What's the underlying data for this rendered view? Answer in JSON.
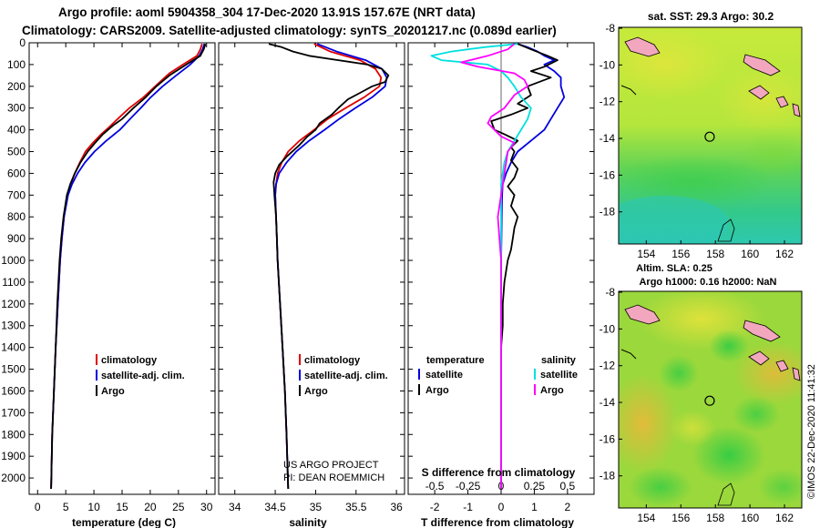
{
  "titles": {
    "line1": "Argo profile: aoml 5904358_304 17-Dec-2020 13.91S 157.67E (NRT data)",
    "line2": "Climatology: CARS2009. Satellite-adjusted climatology: synTS_20201217.nc (0.089d earlier)"
  },
  "colors": {
    "climatology": "#e00000",
    "satellite": "#0000e0",
    "argo": "#000000",
    "salinity_diff": "#00e0e0",
    "argo_salinity_diff": "#ff00ff"
  },
  "depth_axis": {
    "ticks": [
      0,
      100,
      200,
      300,
      400,
      500,
      600,
      700,
      800,
      900,
      1000,
      1100,
      1200,
      1300,
      1400,
      1500,
      1600,
      1700,
      1800,
      1900,
      2000
    ],
    "range": [
      0,
      2075
    ]
  },
  "chart_data": [
    {
      "type": "line",
      "name": "temperature-profile",
      "xlabel": "temperature (deg C)",
      "ylabel": "depth",
      "xlim": [
        -1.5,
        31.5
      ],
      "xticks": [
        0,
        5,
        10,
        15,
        20,
        25,
        30
      ],
      "legend": {
        "placement": "bottom-center",
        "entries": [
          "climatology",
          "satellite-adj. clim.",
          "Argo"
        ]
      },
      "series": [
        {
          "name": "climatology",
          "color": "#e00000",
          "depth": [
            5,
            30,
            60,
            100,
            140,
            190,
            250,
            300,
            350,
            390,
            420,
            460,
            500,
            550,
            600,
            650,
            700,
            800,
            900,
            1000,
            1200,
            1400,
            1600,
            1800,
            2050
          ],
          "values": [
            29.2,
            28.9,
            28.3,
            25.8,
            23.4,
            21.3,
            18.8,
            16.3,
            14.2,
            12.6,
            11.3,
            9.8,
            8.5,
            7.5,
            6.6,
            5.9,
            5.3,
            4.7,
            4.3,
            4.0,
            3.6,
            3.2,
            2.9,
            2.6,
            2.4
          ]
        },
        {
          "name": "satellite-adj. clim.",
          "color": "#0000e0",
          "depth": [
            5,
            30,
            60,
            100,
            150,
            200,
            250,
            300,
            350,
            400,
            450,
            500,
            550,
            600,
            650,
            700,
            800,
            900,
            1000,
            1200,
            1400,
            1600,
            1800,
            2050
          ],
          "values": [
            29.6,
            29.3,
            28.7,
            27.1,
            24.6,
            22.2,
            20.1,
            18.3,
            16.4,
            14.6,
            12.2,
            10.1,
            8.4,
            7.1,
            6.1,
            5.4,
            4.7,
            4.3,
            4.0,
            3.6,
            3.2,
            2.9,
            2.6,
            2.4
          ]
        },
        {
          "name": "Argo",
          "color": "#000000",
          "depth": [
            5,
            30,
            60,
            100,
            150,
            200,
            250,
            300,
            350,
            380,
            420,
            460,
            500,
            550,
            600,
            650,
            700,
            800,
            900,
            1000,
            1200,
            1400,
            1600,
            1800,
            2050
          ],
          "values": [
            29.8,
            29.5,
            28.9,
            26.4,
            23.4,
            21.1,
            19.2,
            17.0,
            15.0,
            13.4,
            11.6,
            10.2,
            8.9,
            7.6,
            6.6,
            5.8,
            5.2,
            4.6,
            4.2,
            3.9,
            3.5,
            3.2,
            2.9,
            2.6,
            2.4
          ]
        }
      ]
    },
    {
      "type": "line",
      "name": "salinity-profile",
      "xlabel": "salinity",
      "ylabel": "depth",
      "xlim": [
        33.8,
        36.1
      ],
      "xticks": [
        34,
        34.5,
        35,
        35.5,
        36
      ],
      "legend": {
        "placement": "bottom-center",
        "entries": [
          "climatology",
          "satellite-adj. clim.",
          "Argo"
        ]
      },
      "series": [
        {
          "name": "climatology",
          "color": "#e00000",
          "depth": [
            5,
            40,
            80,
            120,
            160,
            200,
            250,
            300,
            350,
            400,
            450,
            500,
            550,
            600,
            650,
            700,
            800,
            900,
            1000,
            1200,
            1400,
            1600,
            1800,
            2050
          ],
          "values": [
            34.98,
            35.18,
            35.55,
            35.74,
            35.81,
            35.79,
            35.6,
            35.37,
            35.15,
            34.98,
            34.8,
            34.66,
            34.58,
            34.53,
            34.51,
            34.5,
            34.51,
            34.52,
            34.53,
            34.56,
            34.59,
            34.62,
            34.64,
            34.66
          ]
        },
        {
          "name": "satellite-adj. clim.",
          "color": "#0000e0",
          "depth": [
            5,
            40,
            80,
            120,
            160,
            200,
            250,
            300,
            350,
            400,
            450,
            500,
            550,
            600,
            650,
            700,
            800,
            900,
            1000,
            1200,
            1400,
            1600,
            1800,
            2050
          ],
          "values": [
            35.02,
            35.26,
            35.62,
            35.82,
            35.88,
            35.86,
            35.7,
            35.49,
            35.29,
            35.11,
            34.92,
            34.76,
            34.64,
            34.55,
            34.51,
            34.5,
            34.51,
            34.52,
            34.53,
            34.56,
            34.59,
            34.62,
            34.64,
            34.66
          ]
        },
        {
          "name": "Argo",
          "color": "#000000",
          "depth": [
            5,
            20,
            40,
            60,
            80,
            100,
            120,
            150,
            180,
            200,
            230,
            260,
            300,
            330,
            370,
            400,
            430,
            470,
            520,
            560,
            600,
            640,
            700,
            800,
            900,
            1000,
            1200,
            1400,
            1600,
            1800,
            2050
          ],
          "values": [
            34.42,
            34.58,
            34.72,
            34.92,
            35.28,
            35.64,
            35.82,
            35.9,
            35.86,
            35.7,
            35.55,
            35.4,
            35.28,
            35.2,
            35.05,
            35.0,
            34.9,
            34.8,
            34.65,
            34.55,
            34.5,
            34.48,
            34.49,
            34.51,
            34.52,
            34.53,
            34.56,
            34.59,
            34.62,
            34.64,
            34.66
          ]
        }
      ]
    },
    {
      "type": "line",
      "name": "difference-profile",
      "xlabel": "T difference from climatology",
      "xlabel_top": "S difference from climatology",
      "ylabel": "depth",
      "xlim": [
        -2.8,
        2.8
      ],
      "xticks": [
        -2,
        -1,
        0,
        1,
        2
      ],
      "top_ticks": [
        {
          "value": -2,
          "label": "-0.5"
        },
        {
          "value": -1,
          "label": "-0.25"
        },
        {
          "value": 0,
          "label": "0"
        },
        {
          "value": 1,
          "label": "0.25"
        },
        {
          "value": 2,
          "label": "0.5"
        }
      ],
      "legend": {
        "placement": "bottom-center",
        "temperature_title": "temperature",
        "salinity_title": "salinity",
        "temperature_entries": [
          "satellite",
          "Argo"
        ],
        "salinity_entries": [
          "satellite",
          "Argo"
        ]
      },
      "series": [
        {
          "name": "temperature satellite",
          "color": "#0000e0",
          "depth": [
            5,
            20,
            40,
            60,
            80,
            100,
            130,
            160,
            200,
            250,
            300,
            350,
            400,
            450,
            500,
            550,
            600,
            650,
            700,
            800,
            900,
            1000,
            1200,
            1500,
            1800,
            2050
          ],
          "values": [
            0.5,
            0.8,
            1.1,
            1.3,
            1.6,
            1.3,
            1.6,
            1.8,
            1.8,
            1.9,
            1.7,
            1.5,
            1.3,
            0.9,
            0.5,
            0.3,
            0.15,
            0.05,
            0.03,
            0.02,
            0.01,
            0.0,
            0.0,
            0.0,
            0.0,
            0.0
          ]
        },
        {
          "name": "temperature Argo",
          "color": "#000000",
          "depth": [
            5,
            30,
            60,
            80,
            110,
            130,
            160,
            200,
            240,
            280,
            300,
            330,
            360,
            400,
            420,
            450,
            480,
            500,
            540,
            580,
            620,
            660,
            700,
            750,
            800,
            850,
            900,
            950,
            1000,
            1100,
            1200,
            1300,
            1400,
            1500,
            1700,
            1900,
            2050
          ],
          "values": [
            0.5,
            0.9,
            1.4,
            1.7,
            1.3,
            0.9,
            1.5,
            0.8,
            0.9,
            0.5,
            0.8,
            0.3,
            -0.3,
            -0.2,
            0.1,
            0.5,
            0.3,
            0.4,
            0.3,
            0.5,
            0.4,
            0.2,
            0.4,
            0.3,
            0.5,
            0.4,
            0.35,
            0.3,
            0.2,
            0.1,
            0.05,
            0.05,
            0.0,
            0.0,
            0.0,
            0.0,
            0.0
          ]
        },
        {
          "name": "salinity satellite",
          "color": "#00e0e0",
          "depth": [
            5,
            20,
            40,
            60,
            80,
            100,
            130,
            160,
            200,
            250,
            300,
            350,
            400,
            450,
            500,
            550,
            600,
            650,
            700,
            800,
            900,
            1000,
            1200,
            1500,
            1800,
            2050
          ],
          "values": [
            0.5,
            -0.5,
            -1.5,
            -2.1,
            -1.8,
            -0.4,
            0.0,
            0.2,
            0.4,
            0.6,
            0.9,
            0.8,
            0.6,
            0.4,
            0.2,
            0.1,
            0.05,
            0.0,
            0.0,
            0.0,
            0.0,
            0.0,
            0.0,
            0.0,
            0.0,
            0.0
          ]
        },
        {
          "name": "salinity Argo",
          "color": "#ff00ff",
          "depth": [
            5,
            30,
            60,
            90,
            110,
            140,
            170,
            200,
            240,
            300,
            340,
            370,
            400,
            430,
            460,
            500,
            550,
            600,
            650,
            700,
            800,
            900,
            1000,
            1100,
            1200,
            1400,
            1600,
            1800,
            2050
          ],
          "values": [
            0.4,
            0.2,
            -0.4,
            -1.2,
            -0.7,
            0.4,
            0.7,
            0.8,
            0.4,
            0.1,
            -0.3,
            -0.4,
            -0.2,
            0.0,
            0.4,
            0.2,
            0.15,
            0.1,
            0.05,
            0.0,
            -0.1,
            -0.05,
            0.0,
            0.0,
            0.0,
            0.0,
            0.0,
            0.0,
            0.0
          ]
        }
      ]
    }
  ],
  "labels": {
    "temp_legend": [
      "climatology",
      "satellite-adj. clim.",
      "Argo"
    ],
    "sal_legend": [
      "climatology",
      "satellite-adj. clim.",
      "Argo"
    ],
    "credit1": "US ARGO PROJECT",
    "credit2": "PI: DEAN ROEMMICH",
    "diff_temperature_title": "temperature",
    "diff_salinity_title": "salinity",
    "diff_satellite": "satellite",
    "diff_argo": "Argo",
    "s_diff_title": "S difference from climatology"
  },
  "maps": {
    "sst": {
      "title": "sat. SST: 29.3 Argo: 30.2",
      "yticks": [
        "-8",
        "-10",
        "-12",
        "-14",
        "-16",
        "-18"
      ],
      "xticks": [
        "154",
        "156",
        "158",
        "160",
        "162"
      ],
      "profile_marker": {
        "lon": 157.67,
        "lat": -13.91
      }
    },
    "sla": {
      "title1": "Altim. SLA: 0.25",
      "title2": "Argo h1000: 0.16 h2000: NaN",
      "yticks": [
        "-8",
        "-10",
        "-12",
        "-14",
        "-16",
        "-18"
      ],
      "xticks": [
        "154",
        "156",
        "158",
        "160",
        "162"
      ],
      "profile_marker": {
        "lon": 157.67,
        "lat": -13.91
      }
    }
  },
  "watermark": "©IMOS 22-Dec-2020 11:41:32"
}
